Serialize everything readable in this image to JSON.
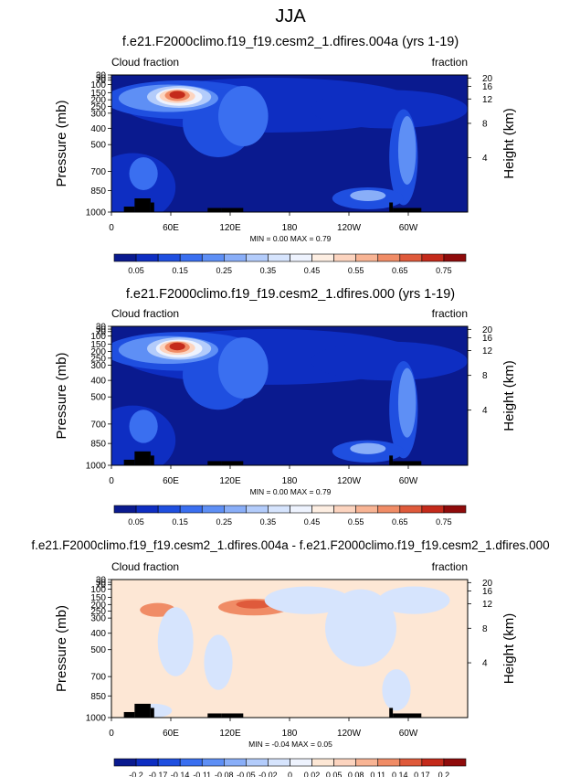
{
  "title": "JJA",
  "colors": {
    "cloud_scale": [
      "#0a1a8f",
      "#0e2ec2",
      "#1f4fe0",
      "#3a6ff0",
      "#5e8ff5",
      "#89aef8",
      "#b3ccfb",
      "#d6e4fd",
      "#eef3fe",
      "#fdeee2",
      "#fcd4bf",
      "#f8b494",
      "#f08c66",
      "#df5a3b",
      "#c42a1b",
      "#8f0b0b"
    ],
    "diff_scale": [
      "#0a1a8f",
      "#0e2ec2",
      "#1f4fe0",
      "#3a6ff0",
      "#5e8ff5",
      "#89aef8",
      "#b3ccfb",
      "#d6e4fd",
      "#eef3fe",
      "#fde7d5",
      "#fcd4bf",
      "#f8b494",
      "#f08c66",
      "#df5a3b",
      "#c42a1b",
      "#8f0b0b"
    ],
    "terrain": "#000000",
    "diff_background": "#fde7d5"
  },
  "chart_data": [
    {
      "type": "heatmap",
      "title": "f.e21.F2000climo.f19_f19.cesm2_1.dfires.004a (yrs 1-19)",
      "left_label": "Cloud fraction",
      "right_label": "fraction",
      "ylabel": "Pressure (mb)",
      "ylabel_right": "Height (km)",
      "x_ticks": [
        "0",
        "60E",
        "120E",
        "180",
        "120W",
        "60W"
      ],
      "y_ticks": [
        "1000",
        "850",
        "700",
        "500",
        "400",
        "300",
        "250",
        "200",
        "150",
        "100",
        "70",
        "50",
        "30"
      ],
      "y_ticks_right": [
        "4",
        "8",
        "12",
        "16",
        "20"
      ],
      "stats": "MIN =   0.00  MAX =   0.79",
      "colorbar_labels": [
        "0.05",
        "0.15",
        "0.25",
        "0.35",
        "0.45",
        "0.55",
        "0.65",
        "0.75"
      ],
      "min": 0.0,
      "max": 0.79
    },
    {
      "type": "heatmap",
      "title": "f.e21.F2000climo.f19_f19.cesm2_1.dfires.000 (yrs 1-19)",
      "left_label": "Cloud fraction",
      "right_label": "fraction",
      "ylabel": "Pressure (mb)",
      "ylabel_right": "Height (km)",
      "x_ticks": [
        "0",
        "60E",
        "120E",
        "180",
        "120W",
        "60W"
      ],
      "y_ticks": [
        "1000",
        "850",
        "700",
        "500",
        "400",
        "300",
        "250",
        "200",
        "150",
        "100",
        "70",
        "50",
        "30"
      ],
      "y_ticks_right": [
        "4",
        "8",
        "12",
        "16",
        "20"
      ],
      "stats": "MIN =   0.00  MAX =   0.79",
      "colorbar_labels": [
        "0.05",
        "0.15",
        "0.25",
        "0.35",
        "0.45",
        "0.55",
        "0.65",
        "0.75"
      ],
      "min": 0.0,
      "max": 0.79
    },
    {
      "type": "heatmap",
      "title": "f.e21.F2000climo.f19_f19.cesm2_1.dfires.004a - f.e21.F2000climo.f19_f19.cesm2_1.dfires.000",
      "left_label": "Cloud fraction",
      "right_label": "fraction",
      "ylabel": "Pressure (mb)",
      "ylabel_right": "Height (km)",
      "x_ticks": [
        "0",
        "60E",
        "120E",
        "180",
        "120W",
        "60W"
      ],
      "y_ticks": [
        "1000",
        "850",
        "700",
        "500",
        "400",
        "300",
        "250",
        "200",
        "150",
        "100",
        "70",
        "50",
        "30"
      ],
      "y_ticks_right": [
        "4",
        "8",
        "12",
        "16",
        "20"
      ],
      "stats": "MIN =  -0.04  MAX =   0.05",
      "colorbar_labels": [
        "-0.2",
        "-0.17",
        "-0.14",
        "-0.11",
        "-0.08",
        "-0.05",
        "-0.02",
        "0",
        "0.02",
        "0.05",
        "0.08",
        "0.11",
        "0.14",
        "0.17",
        "0.2"
      ],
      "min": -0.04,
      "max": 0.05
    }
  ]
}
